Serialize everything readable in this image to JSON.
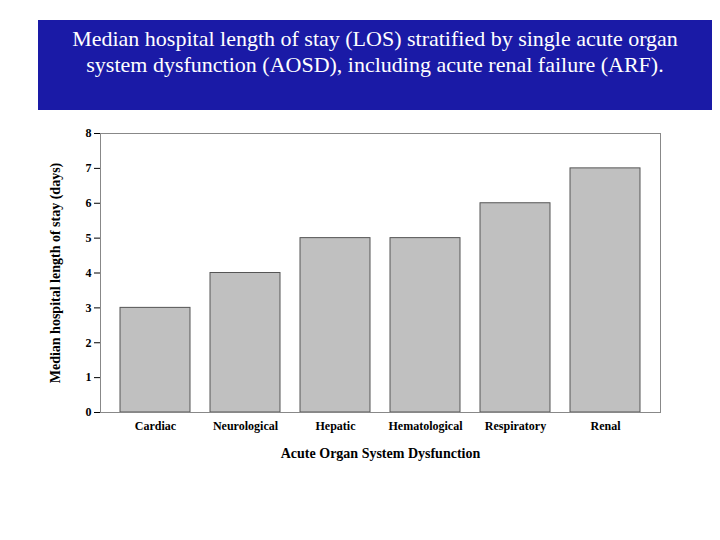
{
  "chart_data": {
    "type": "bar",
    "title": "Median hospital length of stay (LOS) stratified by single acute organ system dysfunction (AOSD), including acute renal failure (ARF).",
    "x_label": "Acute Organ System Dysfunction",
    "y_label": "Median hospital length of stay (days)",
    "categories": [
      "Cardiac",
      "Neurological",
      "Hepatic",
      "Hematological",
      "Respiratory",
      "Renal"
    ],
    "values": [
      3,
      4,
      5,
      5,
      6,
      7
    ],
    "color": "#c0c0c0",
    "ylim": [
      0,
      8
    ],
    "yticks": [
      0,
      1,
      2,
      3,
      4,
      5,
      6,
      7,
      8
    ],
    "grid": false
  }
}
